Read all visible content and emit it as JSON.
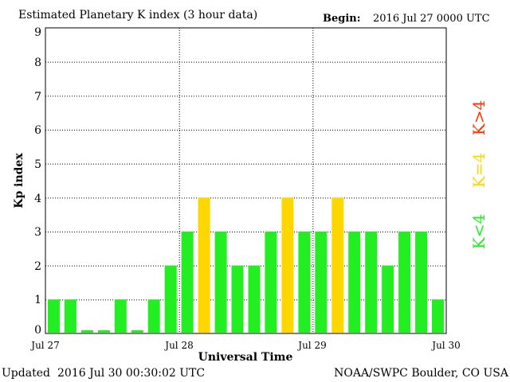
{
  "header": {
    "title": "Estimated Planetary K index (3 hour data)",
    "begin_label": "Begin:",
    "begin_value": "2016 Jul 27 0000 UTC"
  },
  "footer": {
    "updated_label": "Updated",
    "updated_value": "2016 Jul 30 00:30:02 UTC",
    "source": "NOAA/SWPC Boulder, CO USA"
  },
  "legend": [
    {
      "label": "K<4",
      "color": "#22ee22"
    },
    {
      "label": "K=4",
      "color": "#ffd700"
    },
    {
      "label": "K>4",
      "color": "#ff3300"
    }
  ],
  "colors": {
    "below_4": "#22ee22",
    "equal_4": "#ffd700",
    "above_4": "#ff3300"
  },
  "chart_data": {
    "type": "bar",
    "title": "Estimated Planetary K index (3 hour data)",
    "xlabel": "Universal Time",
    "ylabel": "Kp index",
    "ylim": [
      0,
      9
    ],
    "yticks": [
      "0",
      "1",
      "2",
      "3",
      "4",
      "5",
      "6",
      "7",
      "8",
      "9"
    ],
    "grid": true,
    "xticks": [
      "Jul 27",
      "Jul 28",
      "Jul 29",
      "Jul 30"
    ],
    "interval_hours": 3,
    "values": [
      1,
      1,
      0,
      0,
      1,
      0,
      1,
      2,
      3,
      4,
      3,
      2,
      2,
      3,
      4,
      3,
      3,
      4,
      3,
      3,
      2,
      3,
      3,
      1
    ]
  }
}
